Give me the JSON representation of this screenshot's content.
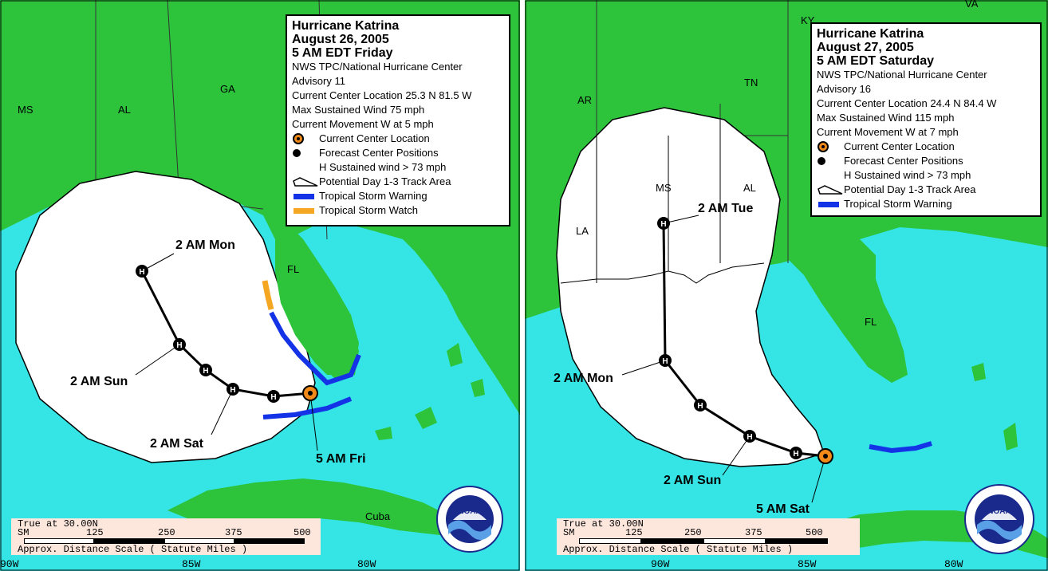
{
  "left": {
    "legend": {
      "title_lines": [
        "Hurricane Katrina",
        "August 26, 2005",
        "5 AM EDT Friday"
      ],
      "info_lines": [
        "NWS TPC/National Hurricane Center",
        "Advisory 11",
        "Current Center Location 25.3 N  81.5 W",
        "Max Sustained Wind  75 mph",
        "Current Movement W at  5 mph"
      ],
      "items": {
        "current_center": "Current Center Location",
        "forecast_positions": "Forecast Center Positions",
        "sustained_wind": "H  Sustained wind > 73 mph",
        "track_area": "Potential Day 1-3 Track Area",
        "ts_warning": "Tropical Storm Warning",
        "ts_watch": "Tropical Storm Watch"
      }
    },
    "state_labels": {
      "ms": "MS",
      "al": "AL",
      "ga": "GA",
      "fl": "FL",
      "cuba": "Cuba"
    },
    "track_labels": {
      "mon": "2 AM Mon",
      "sun": "2 AM Sun",
      "sat": "2 AM Sat",
      "fri": "5 AM Fri"
    },
    "scale": {
      "true_at": "True at 30.00N",
      "sm": "SM",
      "ticks": [
        "125",
        "250",
        "375",
        "500"
      ],
      "caption": "Approx. Distance Scale ( Statute Miles )"
    },
    "longitudes": [
      "90W",
      "85W",
      "80W"
    ],
    "logo_text": "NOAA"
  },
  "right": {
    "legend": {
      "title_lines": [
        "Hurricane Katrina",
        "August 27, 2005",
        "5 AM EDT Saturday"
      ],
      "info_lines": [
        "NWS TPC/National Hurricane Center",
        "Advisory 16",
        "Current Center Location 24.4 N  84.4 W",
        "Max Sustained Wind  115 mph",
        "Current Movement W at  7 mph"
      ],
      "items": {
        "current_center": "Current Center Location",
        "forecast_positions": "Forecast Center Positions",
        "sustained_wind": "H  Sustained wind > 73 mph",
        "track_area": "Potential Day 1-3 Track Area",
        "ts_warning": "Tropical Storm Warning"
      }
    },
    "state_labels": {
      "ky": "KY",
      "va": "VA",
      "tn": "TN",
      "ar": "AR",
      "ms": "MS",
      "al": "AL",
      "la": "LA",
      "fl": "FL"
    },
    "track_labels": {
      "tue": "2 AM Tue",
      "mon": "2 AM Mon",
      "sun": "2 AM Sun",
      "sat": "5 AM Sat"
    },
    "scale": {
      "true_at": "True at 30.00N",
      "sm": "SM",
      "ticks": [
        "125",
        "250",
        "375",
        "500"
      ],
      "caption": "Approx. Distance Scale ( Statute Miles )"
    },
    "longitudes": [
      "90W",
      "85W",
      "80W"
    ],
    "logo_text": "NOAA"
  },
  "colors": {
    "land": "#2dc43c",
    "water": "#35e4e4",
    "cone": "#ffffff",
    "track": "#000000",
    "current_center": "#f28a1a",
    "ts_warning": "#1432e6",
    "ts_watch": "#f5a623",
    "scale_bg": "#fde7dd"
  }
}
